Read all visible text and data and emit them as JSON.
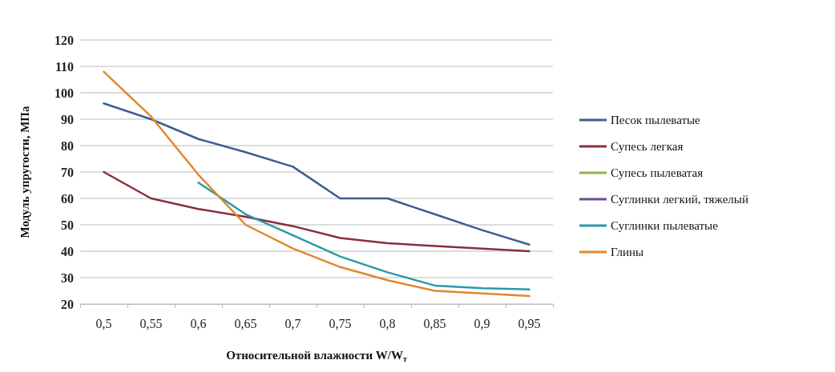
{
  "chart_data": {
    "type": "line",
    "ylabel": "Модуль упругости, МПа",
    "xlabel": "Относительной влажности W/W$_{т}$",
    "categories": [
      "0,5",
      "0,55",
      "0,6",
      "0,65",
      "0,7",
      "0,75",
      "0,8",
      "0,85",
      "0,9",
      "0,95"
    ],
    "series": [
      {
        "name": "Песок пылеватые",
        "color": "#3c5f8f",
        "values": [
          96,
          90,
          82.5,
          77.5,
          72,
          60,
          60,
          54,
          48,
          42.5
        ]
      },
      {
        "name": "Супесь легкая",
        "color": "#8b2e3b",
        "values": [
          70,
          60,
          56,
          53,
          49.5,
          45,
          43,
          42,
          41,
          40
        ]
      },
      {
        "name": "Супесь пылеватая",
        "color": "#8fb24a",
        "values": [
          null,
          null,
          null,
          null,
          null,
          null,
          null,
          null,
          null,
          null
        ]
      },
      {
        "name": "Суглинки легкий, тяжелый",
        "color": "#6a4f8f",
        "values": [
          null,
          null,
          null,
          null,
          null,
          null,
          null,
          null,
          null,
          null
        ]
      },
      {
        "name": "Суглинки пылеватые",
        "color": "#2a9aa8",
        "values": [
          null,
          null,
          66,
          54,
          46,
          38,
          32,
          27,
          26,
          25.5
        ]
      },
      {
        "name": "Глины",
        "color": "#e0872e",
        "values": [
          108,
          91,
          69,
          50,
          41,
          34,
          29,
          25,
          24,
          23
        ]
      }
    ],
    "ylim": [
      20,
      120
    ],
    "yticks": [
      20,
      30,
      40,
      50,
      60,
      70,
      80,
      90,
      100,
      110,
      120
    ],
    "grid": "y",
    "legend": "right",
    "marker": "none",
    "line_style": "solid"
  }
}
